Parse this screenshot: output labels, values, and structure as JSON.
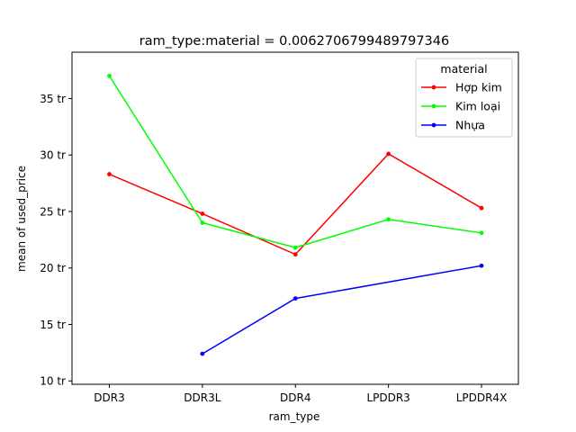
{
  "chart_data": {
    "type": "line",
    "title": "ram_type:material = 0.0062706799489797346",
    "xlabel": "ram_type",
    "ylabel": "mean of used_price",
    "categories": [
      "DDR3",
      "DDR3L",
      "DDR4",
      "LPDDR3",
      "LPDDR4X"
    ],
    "y_unit_suffix": " tr",
    "ylim": [
      9.7,
      39.1
    ],
    "yticks": [
      10,
      15,
      20,
      25,
      30,
      35
    ],
    "ytick_labels": [
      "10 tr",
      "15 tr",
      "20 tr",
      "25 tr",
      "30 tr",
      "35 tr"
    ],
    "grid": false,
    "legend": {
      "title": "material",
      "placement": "top-right"
    },
    "series": [
      {
        "name": "Hợp kim",
        "color": "#ff0000",
        "values": [
          28.3,
          24.8,
          21.2,
          30.1,
          25.3
        ]
      },
      {
        "name": "Kim loại",
        "color": "#00ff00",
        "values": [
          37.0,
          24.0,
          21.8,
          24.3,
          23.1
        ]
      },
      {
        "name": "Nhựa",
        "color": "#0000ff",
        "values": [
          null,
          12.4,
          17.3,
          null,
          20.2
        ]
      }
    ]
  }
}
